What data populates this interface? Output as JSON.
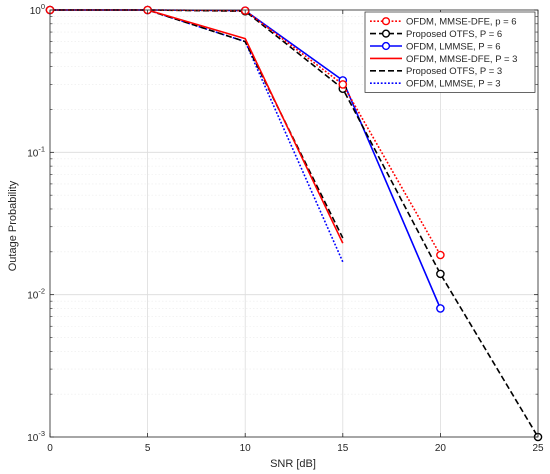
{
  "chart_data": {
    "type": "line",
    "title": "",
    "xlabel": "SNR [dB]",
    "ylabel": "Outage Probability",
    "xlim": [
      0,
      25
    ],
    "ylim": [
      0.001,
      1
    ],
    "yscale": "log",
    "grid": true,
    "legend_position": "top-right",
    "xticks": [
      0,
      5,
      10,
      15,
      20,
      25
    ],
    "xtick_labels": [
      "0",
      "5",
      "10",
      "15",
      "20",
      "25"
    ],
    "yticks": [
      0.001,
      0.01,
      0.1,
      1
    ],
    "ytick_labels": [
      {
        "base": "10",
        "exp": "-3"
      },
      {
        "base": "10",
        "exp": "-2"
      },
      {
        "base": "10",
        "exp": "-1"
      },
      {
        "base": "10",
        "exp": "0"
      }
    ],
    "series": [
      {
        "name": "OFDM, MMSE-DFE, p = 6",
        "color": "#ff0000",
        "dash": "dotted",
        "marker": "circle",
        "x": [
          0,
          5,
          10,
          15,
          20
        ],
        "y": [
          1.0,
          1.0,
          0.99,
          0.3,
          0.019
        ]
      },
      {
        "name": "Proposed OTFS, P = 6",
        "color": "#000000",
        "dash": "dashed",
        "marker": "circle",
        "x": [
          0,
          5,
          10,
          15,
          20,
          25
        ],
        "y": [
          1.0,
          1.0,
          0.98,
          0.28,
          0.014,
          0.001
        ]
      },
      {
        "name": "OFDM, LMMSE, P = 6",
        "color": "#0000ff",
        "dash": "solid",
        "marker": "circle",
        "x": [
          0,
          5,
          10,
          15,
          20
        ],
        "y": [
          1.0,
          1.0,
          0.99,
          0.32,
          0.008
        ]
      },
      {
        "name": "OFDM, MMSE-DFE, P = 3",
        "color": "#ff0000",
        "dash": "solid",
        "marker": "none",
        "x": [
          0,
          5,
          10,
          15
        ],
        "y": [
          1.0,
          1.0,
          0.63,
          0.023
        ]
      },
      {
        "name": "Proposed OTFS, P = 3",
        "color": "#000000",
        "dash": "dashed",
        "marker": "none",
        "x": [
          0,
          5,
          10,
          15
        ],
        "y": [
          1.0,
          1.0,
          0.6,
          0.025
        ]
      },
      {
        "name": "OFDM, LMMSE, P = 3",
        "color": "#0000ff",
        "dash": "dotted",
        "marker": "none",
        "x": [
          0,
          5,
          10,
          15
        ],
        "y": [
          1.0,
          1.0,
          0.6,
          0.017
        ]
      }
    ]
  }
}
